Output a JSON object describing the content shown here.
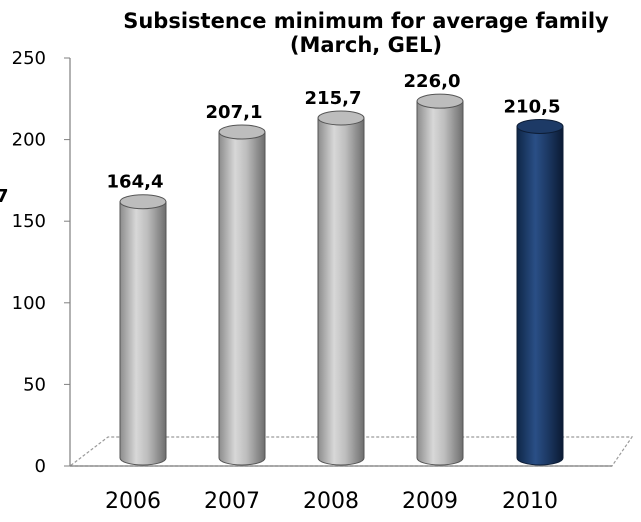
{
  "chart_data": {
    "type": "bar",
    "title": "Subsistence minimum for average family",
    "subtitle": "(March, GEL)",
    "categories": [
      "2006",
      "2007",
      "2008",
      "2009",
      "2010"
    ],
    "values": [
      164.4,
      207.1,
      215.7,
      226.0,
      210.5
    ],
    "data_labels": [
      "164,4",
      "207,1",
      "215,7",
      "226,0",
      "210,5"
    ],
    "y_ticks": [
      "0",
      "50",
      "100",
      "150",
      "200",
      "250"
    ],
    "ylim": [
      0,
      250
    ],
    "cut_off_ylabel": "7",
    "grid": false,
    "style": "3d-cylinder",
    "colors": {
      "bar": "#b3b3b3",
      "bar_dark": "#6e6e6e",
      "highlight_bar": "#1d3a66",
      "highlight_bar_dark": "#0d1d36"
    }
  }
}
